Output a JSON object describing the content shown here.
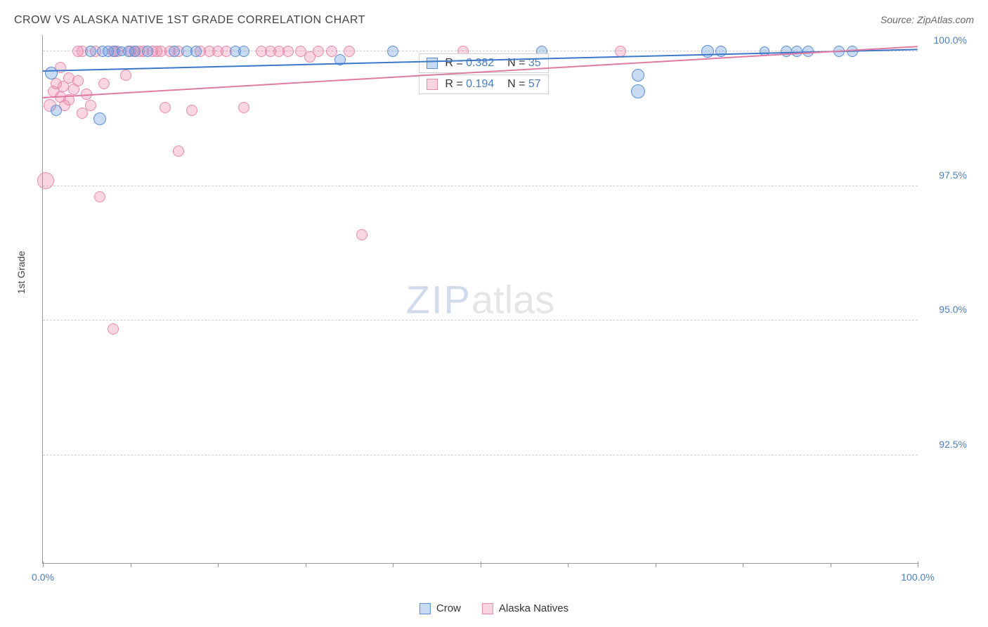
{
  "title": "CROW VS ALASKA NATIVE 1ST GRADE CORRELATION CHART",
  "source": "Source: ZipAtlas.com",
  "y_axis_label": "1st Grade",
  "watermark": {
    "part1": "ZIP",
    "part2": "atlas"
  },
  "colors": {
    "blue_fill": "rgba(100,150,220,0.35)",
    "blue_stroke": "#5b8fd6",
    "pink_fill": "rgba(240,120,160,0.30)",
    "pink_stroke": "#e78aac",
    "blue_line": "#3b78c9",
    "pink_line": "#e07aa0",
    "axis_label": "#4a7ebb"
  },
  "chart": {
    "type": "scatter",
    "xlim": [
      0,
      100
    ],
    "ylim": [
      90.5,
      100.3
    ],
    "y_ticks": [
      {
        "v": 100.0,
        "label": "100.0%"
      },
      {
        "v": 97.5,
        "label": "97.5%"
      },
      {
        "v": 95.0,
        "label": "95.0%"
      },
      {
        "v": 92.5,
        "label": "92.5%"
      }
    ],
    "x_ticks_major": [
      0,
      50,
      100
    ],
    "x_ticks_minor": [
      10,
      20,
      30,
      40,
      60,
      70,
      80,
      90
    ],
    "x_tick_labels": [
      {
        "v": 0,
        "label": "0.0%"
      },
      {
        "v": 100,
        "label": "100.0%"
      }
    ],
    "marker_radius_default": 8,
    "series": [
      {
        "name": "Crow",
        "color_key": "blue",
        "R": "0.382",
        "N": "35",
        "trend": {
          "x1": 0,
          "y1": 99.65,
          "x2": 100,
          "y2": 100.05
        },
        "points": [
          {
            "x": 1.0,
            "y": 99.6,
            "r": 9
          },
          {
            "x": 1.5,
            "y": 98.9,
            "r": 8
          },
          {
            "x": 6.5,
            "y": 98.75,
            "r": 9
          },
          {
            "x": 5.5,
            "y": 100.0,
            "r": 8
          },
          {
            "x": 6.8,
            "y": 100.0,
            "r": 8
          },
          {
            "x": 7.5,
            "y": 100.0,
            "r": 8
          },
          {
            "x": 8.2,
            "y": 100.0,
            "r": 8
          },
          {
            "x": 9.0,
            "y": 100.0,
            "r": 7
          },
          {
            "x": 9.8,
            "y": 100.0,
            "r": 8
          },
          {
            "x": 10.5,
            "y": 100.0,
            "r": 8
          },
          {
            "x": 12.0,
            "y": 100.0,
            "r": 8
          },
          {
            "x": 15.0,
            "y": 100.0,
            "r": 8
          },
          {
            "x": 16.5,
            "y": 100.0,
            "r": 8
          },
          {
            "x": 17.5,
            "y": 100.0,
            "r": 8
          },
          {
            "x": 22.0,
            "y": 100.0,
            "r": 8
          },
          {
            "x": 23.0,
            "y": 100.0,
            "r": 8
          },
          {
            "x": 34.0,
            "y": 99.85,
            "r": 8
          },
          {
            "x": 40.0,
            "y": 100.0,
            "r": 8
          },
          {
            "x": 57.0,
            "y": 100.0,
            "r": 8
          },
          {
            "x": 68.0,
            "y": 99.55,
            "r": 9
          },
          {
            "x": 68.0,
            "y": 99.25,
            "r": 10
          },
          {
            "x": 76.0,
            "y": 100.0,
            "r": 9
          },
          {
            "x": 77.5,
            "y": 100.0,
            "r": 8
          },
          {
            "x": 82.5,
            "y": 100.0,
            "r": 7
          },
          {
            "x": 85.0,
            "y": 100.0,
            "r": 8
          },
          {
            "x": 86.2,
            "y": 100.0,
            "r": 8
          },
          {
            "x": 87.5,
            "y": 100.0,
            "r": 8
          },
          {
            "x": 91.0,
            "y": 100.0,
            "r": 8
          },
          {
            "x": 92.5,
            "y": 100.0,
            "r": 8
          }
        ]
      },
      {
        "name": "Alaska Natives",
        "color_key": "pink",
        "R": "0.194",
        "N": "57",
        "trend": {
          "x1": 0,
          "y1": 99.15,
          "x2": 100,
          "y2": 100.1
        },
        "points": [
          {
            "x": 0.3,
            "y": 97.6,
            "r": 12
          },
          {
            "x": 0.8,
            "y": 99.0,
            "r": 9
          },
          {
            "x": 1.2,
            "y": 99.25,
            "r": 8
          },
          {
            "x": 1.5,
            "y": 99.4,
            "r": 8
          },
          {
            "x": 2.0,
            "y": 99.7,
            "r": 8
          },
          {
            "x": 2.0,
            "y": 99.15,
            "r": 8
          },
          {
            "x": 2.3,
            "y": 99.35,
            "r": 8
          },
          {
            "x": 2.5,
            "y": 99.0,
            "r": 8
          },
          {
            "x": 3.0,
            "y": 99.5,
            "r": 8
          },
          {
            "x": 3.0,
            "y": 99.1,
            "r": 8
          },
          {
            "x": 3.5,
            "y": 99.3,
            "r": 8
          },
          {
            "x": 4.0,
            "y": 99.45,
            "r": 8
          },
          {
            "x": 4.0,
            "y": 100.0,
            "r": 8
          },
          {
            "x": 4.5,
            "y": 98.85,
            "r": 8
          },
          {
            "x": 4.5,
            "y": 100.0,
            "r": 8
          },
          {
            "x": 5.0,
            "y": 99.2,
            "r": 8
          },
          {
            "x": 5.5,
            "y": 99.0,
            "r": 8
          },
          {
            "x": 6.0,
            "y": 100.0,
            "r": 8
          },
          {
            "x": 6.5,
            "y": 97.3,
            "r": 8
          },
          {
            "x": 7.0,
            "y": 99.4,
            "r": 8
          },
          {
            "x": 8.0,
            "y": 94.85,
            "r": 8
          },
          {
            "x": 8.0,
            "y": 100.0,
            "r": 8
          },
          {
            "x": 8.5,
            "y": 100.0,
            "r": 8
          },
          {
            "x": 9.5,
            "y": 99.55,
            "r": 8
          },
          {
            "x": 10.0,
            "y": 100.0,
            "r": 8
          },
          {
            "x": 10.5,
            "y": 100.0,
            "r": 8
          },
          {
            "x": 11.0,
            "y": 100.0,
            "r": 8
          },
          {
            "x": 11.5,
            "y": 100.0,
            "r": 8
          },
          {
            "x": 12.5,
            "y": 100.0,
            "r": 8
          },
          {
            "x": 13.0,
            "y": 100.0,
            "r": 8
          },
          {
            "x": 13.5,
            "y": 100.0,
            "r": 8
          },
          {
            "x": 14.0,
            "y": 98.95,
            "r": 8
          },
          {
            "x": 14.5,
            "y": 100.0,
            "r": 8
          },
          {
            "x": 15.5,
            "y": 100.0,
            "r": 8
          },
          {
            "x": 15.5,
            "y": 98.15,
            "r": 8
          },
          {
            "x": 17.0,
            "y": 98.9,
            "r": 8
          },
          {
            "x": 18.0,
            "y": 100.0,
            "r": 8
          },
          {
            "x": 19.0,
            "y": 100.0,
            "r": 8
          },
          {
            "x": 20.0,
            "y": 100.0,
            "r": 8
          },
          {
            "x": 21.0,
            "y": 100.0,
            "r": 8
          },
          {
            "x": 23.0,
            "y": 98.95,
            "r": 8
          },
          {
            "x": 25.0,
            "y": 100.0,
            "r": 8
          },
          {
            "x": 26.0,
            "y": 100.0,
            "r": 8
          },
          {
            "x": 27.0,
            "y": 100.0,
            "r": 8
          },
          {
            "x": 28.0,
            "y": 100.0,
            "r": 8
          },
          {
            "x": 29.5,
            "y": 100.0,
            "r": 8
          },
          {
            "x": 30.5,
            "y": 99.9,
            "r": 8
          },
          {
            "x": 31.5,
            "y": 100.0,
            "r": 8
          },
          {
            "x": 33.0,
            "y": 100.0,
            "r": 8
          },
          {
            "x": 35.0,
            "y": 100.0,
            "r": 8
          },
          {
            "x": 36.5,
            "y": 96.6,
            "r": 8
          },
          {
            "x": 48.0,
            "y": 100.0,
            "r": 8
          },
          {
            "x": 66.0,
            "y": 100.0,
            "r": 8
          }
        ]
      }
    ]
  },
  "stats_boxes": [
    {
      "series_idx": 0,
      "top_pct": 3.5,
      "left_pct": 43
    },
    {
      "series_idx": 1,
      "top_pct": 7.5,
      "left_pct": 43
    }
  ],
  "legend": [
    {
      "label": "Crow",
      "color_key": "blue"
    },
    {
      "label": "Alaska Natives",
      "color_key": "pink"
    }
  ]
}
